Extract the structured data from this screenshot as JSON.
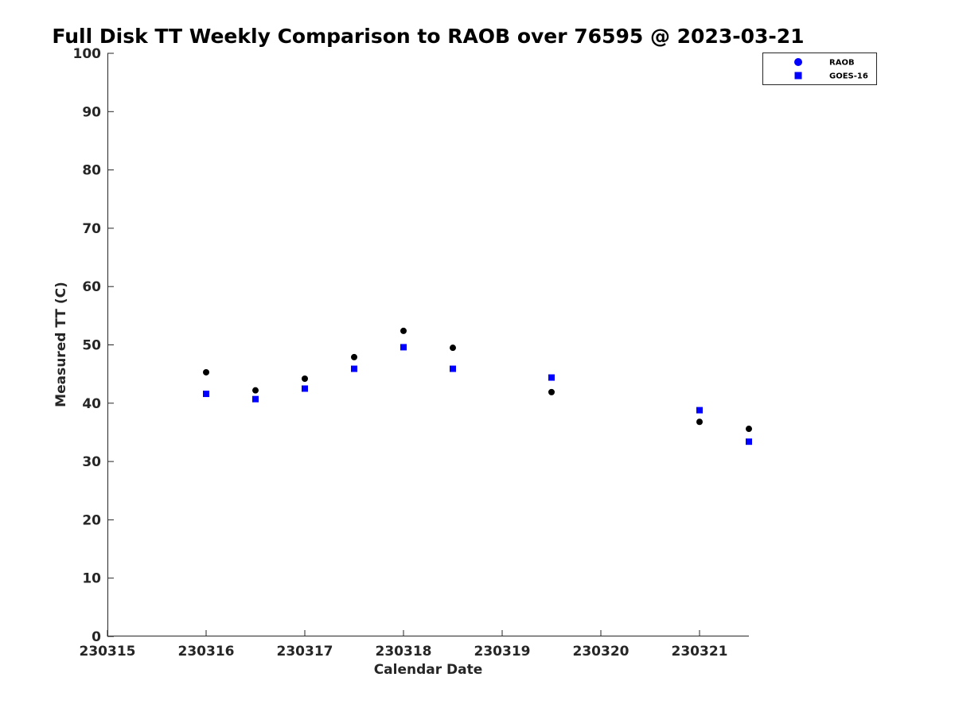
{
  "chart_data": {
    "type": "scatter",
    "title": "Full Disk TT Weekly Comparison to RAOB over 76595 @ 2023-03-21",
    "xlabel": "Calendar Date",
    "ylabel": "Measured TT (C)",
    "xlim": [
      230315,
      230321.5
    ],
    "ylim": [
      0,
      100
    ],
    "x_ticks": [
      {
        "value": 230315,
        "label": "230315"
      },
      {
        "value": 230316,
        "label": "230316"
      },
      {
        "value": 230317,
        "label": "230317"
      },
      {
        "value": 230318,
        "label": "230318"
      },
      {
        "value": 230319,
        "label": "230319"
      },
      {
        "value": 230320,
        "label": "230320"
      },
      {
        "value": 230321,
        "label": "230321"
      }
    ],
    "y_ticks": [
      {
        "value": 0,
        "label": "0"
      },
      {
        "value": 10,
        "label": "10"
      },
      {
        "value": 20,
        "label": "20"
      },
      {
        "value": 30,
        "label": "30"
      },
      {
        "value": 40,
        "label": "40"
      },
      {
        "value": 50,
        "label": "50"
      },
      {
        "value": 60,
        "label": "60"
      },
      {
        "value": 70,
        "label": "70"
      },
      {
        "value": 80,
        "label": "80"
      },
      {
        "value": 90,
        "label": "90"
      },
      {
        "value": 100,
        "label": "100"
      }
    ],
    "grid": false,
    "legend_position": "top-right",
    "series": [
      {
        "name": "RAOB",
        "marker": "circle",
        "color": "#000000",
        "legend_color": "#0000ff",
        "points": [
          {
            "x": 230316,
            "y": 45.3
          },
          {
            "x": 230316.5,
            "y": 42.2
          },
          {
            "x": 230317,
            "y": 44.2
          },
          {
            "x": 230317.5,
            "y": 47.9
          },
          {
            "x": 230318,
            "y": 52.4
          },
          {
            "x": 230318.5,
            "y": 49.5
          },
          {
            "x": 230319.5,
            "y": 41.9
          },
          {
            "x": 230321,
            "y": 36.8
          },
          {
            "x": 230321.5,
            "y": 35.6
          }
        ]
      },
      {
        "name": "GOES-16",
        "marker": "square",
        "color": "#0000ff",
        "legend_color": "#0000ff",
        "points": [
          {
            "x": 230316,
            "y": 41.6
          },
          {
            "x": 230316.5,
            "y": 40.7
          },
          {
            "x": 230317,
            "y": 42.5
          },
          {
            "x": 230317.5,
            "y": 45.9
          },
          {
            "x": 230318,
            "y": 49.6
          },
          {
            "x": 230318.5,
            "y": 45.9
          },
          {
            "x": 230319.5,
            "y": 44.4
          },
          {
            "x": 230321,
            "y": 38.8
          },
          {
            "x": 230321.5,
            "y": 33.4
          }
        ]
      }
    ]
  }
}
